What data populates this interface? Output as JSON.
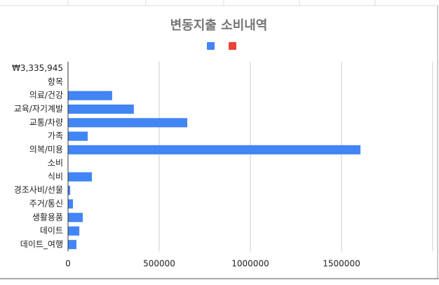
{
  "chart_data": {
    "type": "bar",
    "orientation": "horizontal",
    "title": "변동지출 소비내역",
    "categories": [
      "₩3,335,945",
      "항목",
      "의료/건강",
      "교육/자기계발",
      "교통/차량",
      "가족",
      "의복/미용",
      "소비",
      "식비",
      "경조사비/선물",
      "주거/통신",
      "생활용품",
      "데이트",
      "데이트_여행"
    ],
    "series": [
      {
        "color": "#4285f4",
        "values": [
          null,
          null,
          242000,
          361000,
          654000,
          108000,
          1604000,
          0,
          131000,
          12000,
          27000,
          81000,
          62000,
          46000
        ]
      },
      {
        "color": "#ea4335",
        "values": [
          null,
          null,
          null,
          null,
          null,
          null,
          null,
          null,
          null,
          null,
          null,
          null,
          null,
          null
        ]
      }
    ],
    "xlim": [
      0,
      2000000
    ],
    "xticks": [
      0,
      500000,
      1000000,
      1500000
    ],
    "grid": true
  }
}
